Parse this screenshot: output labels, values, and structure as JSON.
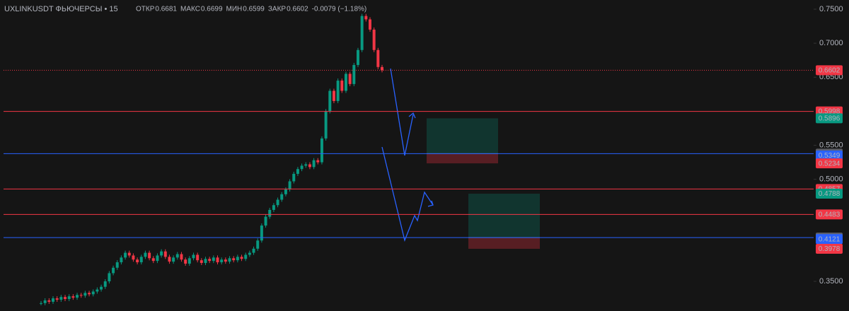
{
  "chart_data": {
    "type": "candlestick",
    "title": "UXLINKUSDT ФЬЮЧЕРСЫ • 15",
    "ohlc_labels": [
      {
        "name": "ОТКР",
        "value": "0.6681"
      },
      {
        "name": "МАКС",
        "value": "0.6699"
      },
      {
        "name": "МИН",
        "value": "0.6599"
      },
      {
        "name": "ЗАКР",
        "value": "0.6602"
      }
    ],
    "change": "-0.0079 (−1.18%)",
    "up_color": "#089981",
    "down_color": "#f23645",
    "values": [
      0.318,
      0.322,
      0.32,
      0.325,
      0.323,
      0.327,
      0.324,
      0.328,
      0.326,
      0.33,
      0.329,
      0.333,
      0.331,
      0.335,
      0.338,
      0.342,
      0.35,
      0.362,
      0.37,
      0.378,
      0.385,
      0.392,
      0.388,
      0.382,
      0.378,
      0.386,
      0.392,
      0.384,
      0.38,
      0.388,
      0.394,
      0.386,
      0.379,
      0.385,
      0.39,
      0.382,
      0.376,
      0.384,
      0.389,
      0.381,
      0.377,
      0.383,
      0.38,
      0.385,
      0.378,
      0.382,
      0.379,
      0.384,
      0.381,
      0.386,
      0.383,
      0.389,
      0.392,
      0.398,
      0.41,
      0.432,
      0.445,
      0.455,
      0.462,
      0.47,
      0.478,
      0.485,
      0.497,
      0.508,
      0.515,
      0.52,
      0.522,
      0.518,
      0.528,
      0.525,
      0.56,
      0.6,
      0.63,
      0.615,
      0.645,
      0.63,
      0.655,
      0.64,
      0.668,
      0.69,
      0.74,
      0.735,
      0.72,
      0.69,
      0.665,
      0.6602
    ],
    "ylim": [
      0.3064,
      0.7635
    ],
    "yticks": [
      {
        "value": 0.75,
        "label": "0.7500"
      },
      {
        "value": 0.7,
        "label": "0.7000"
      },
      {
        "value": 0.65,
        "label": "0.6500"
      },
      {
        "value": 0.55,
        "label": "0.5500"
      },
      {
        "value": 0.5,
        "label": "0.5000"
      },
      {
        "value": 0.35,
        "label": "0.3500"
      }
    ],
    "price_labels": [
      {
        "value": 0.6602,
        "color": "#f23645",
        "line": "dotted",
        "line_color": "#f23645"
      },
      {
        "value": 0.5998,
        "color": "#f23645",
        "line": "solid",
        "line_color": "#f23645"
      },
      {
        "value": 0.5896,
        "color": "#089981"
      },
      {
        "value": 0.5377,
        "color": "#5d606b",
        "line": "solid",
        "line_color": "#2962ff"
      },
      {
        "value": 0.5349,
        "color": "#2962ff"
      },
      {
        "value": 0.5234,
        "color": "#f23645"
      },
      {
        "value": 0.4857,
        "color": "#f23645",
        "line": "solid",
        "line_color": "#f23645"
      },
      {
        "value": 0.4788,
        "color": "#089981"
      },
      {
        "value": 0.4483,
        "color": "#f23645",
        "line": "solid",
        "line_color": "#f23645"
      },
      {
        "value": 0.4143,
        "color": "#5d606b",
        "line": "solid",
        "line_color": "#2962ff"
      },
      {
        "value": 0.4121,
        "color": "#2962ff"
      },
      {
        "value": 0.3978,
        "color": "#f23645"
      }
    ],
    "positions": [
      {
        "entry": 0.5377,
        "target": 0.5896,
        "stop": 0.5234
      },
      {
        "entry": 0.4143,
        "target": 0.4788,
        "stop": 0.3978
      }
    ]
  }
}
